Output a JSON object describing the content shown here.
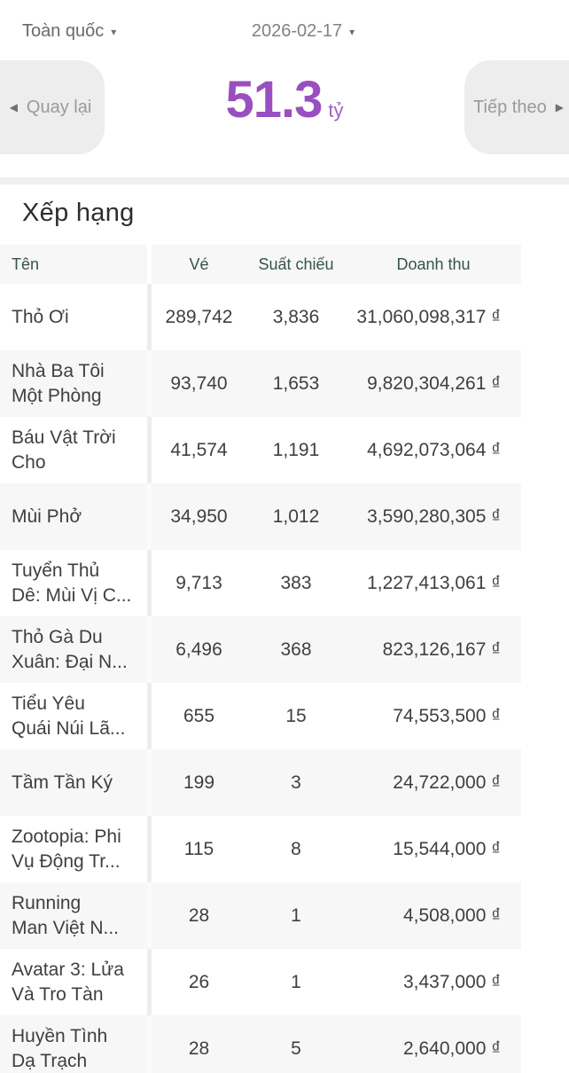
{
  "header": {
    "region": "Toàn quốc",
    "date": "2026-02-17",
    "prev_label": "Quay lại",
    "next_label": "Tiếp theo",
    "total_value": "51.3",
    "total_unit": "tỷ"
  },
  "icons": {
    "caret_down": "▾",
    "arrow_left": "◀",
    "arrow_right": "▶"
  },
  "colors": {
    "accent_purple": "#9a4fc0",
    "table_header_teal": "#365349",
    "row_alt_gray": "#f7f7f7",
    "button_gray": "#ededed"
  },
  "ranking": {
    "title": "Xếp hạng",
    "columns": [
      "Tên",
      "Vé",
      "Suất chiếu",
      "Doanh thu"
    ],
    "rows": [
      {
        "name": "Thỏ Ơi",
        "tickets": "289,742",
        "showtimes": "3,836",
        "revenue": "31,060,098,317 ₫"
      },
      {
        "name": "Nhà Ba Tôi\nMột Phòng",
        "tickets": "93,740",
        "showtimes": "1,653",
        "revenue": "9,820,304,261 ₫"
      },
      {
        "name": "Báu Vật Trời\nCho",
        "tickets": "41,574",
        "showtimes": "1,191",
        "revenue": "4,692,073,064 ₫"
      },
      {
        "name": "Mùi Phở",
        "tickets": "34,950",
        "showtimes": "1,012",
        "revenue": "3,590,280,305 ₫"
      },
      {
        "name": "Tuyển Thủ\nDê: Mùi Vị C...",
        "tickets": "9,713",
        "showtimes": "383",
        "revenue": "1,227,413,061 ₫"
      },
      {
        "name": "Thỏ Gà Du\nXuân: Đại N...",
        "tickets": "6,496",
        "showtimes": "368",
        "revenue": "823,126,167 ₫"
      },
      {
        "name": "Tiểu Yêu\nQuái Núi Lã...",
        "tickets": "655",
        "showtimes": "15",
        "revenue": "74,553,500 ₫"
      },
      {
        "name": "Tầm Tần Ký",
        "tickets": "199",
        "showtimes": "3",
        "revenue": "24,722,000 ₫"
      },
      {
        "name": "Zootopia: Phi\nVụ Động Tr...",
        "tickets": "115",
        "showtimes": "8",
        "revenue": "15,544,000 ₫"
      },
      {
        "name": "Running\nMan Việt N...",
        "tickets": "28",
        "showtimes": "1",
        "revenue": "4,508,000 ₫"
      },
      {
        "name": "Avatar 3: Lửa\nVà Tro Tàn",
        "tickets": "26",
        "showtimes": "1",
        "revenue": "3,437,000 ₫"
      },
      {
        "name": "Huyền Tình\nDạ Trạch",
        "tickets": "28",
        "showtimes": "5",
        "revenue": "2,640,000 ₫"
      }
    ]
  }
}
